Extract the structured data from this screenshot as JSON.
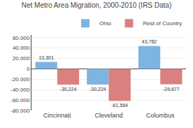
{
  "chart_data": {
    "type": "bar",
    "title": "Net Metro Area Migration, 2000-2010 (IRS Data)",
    "categories": [
      "Cincinnati",
      "Cleveland",
      "Columbus"
    ],
    "series": [
      {
        "name": "Ohio",
        "color": "#7EB4E2",
        "values": [
          13301,
          -30224,
          43782
        ],
        "value_labels": [
          "13,301",
          "-30,224",
          "43,782"
        ]
      },
      {
        "name": "Rest of Country",
        "color": "#DA8080",
        "values": [
          -30224,
          -61564,
          -29677
        ],
        "value_labels": [
          "-30,224",
          "-61,564",
          "-29,677"
        ]
      }
    ],
    "ylim": [
      -80000,
      65000
    ],
    "yticks": [
      {
        "value": -80000,
        "label": "-80.000"
      },
      {
        "value": -60000,
        "label": "-60.000"
      },
      {
        "value": -40000,
        "label": "-40.000"
      },
      {
        "value": -20000,
        "label": "-20.000"
      },
      0,
      {
        "value": 20000,
        "label": "20.000"
      },
      {
        "value": 40000,
        "label": "40.000"
      },
      {
        "value": 60000,
        "label": "60.000"
      }
    ],
    "grid": true,
    "legend": "upper right",
    "data_labels": true
  }
}
